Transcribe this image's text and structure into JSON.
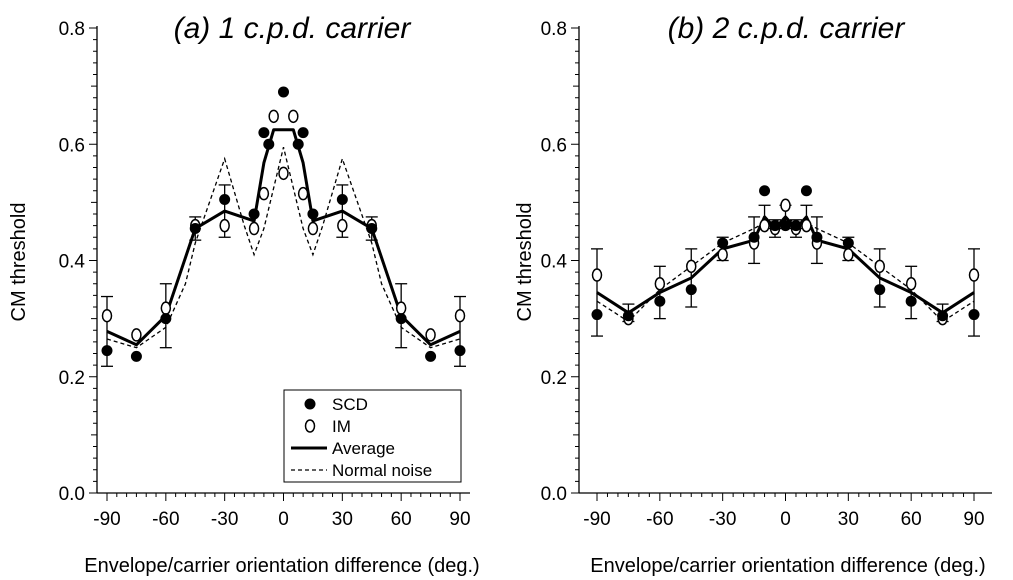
{
  "chart_data": [
    {
      "type": "line",
      "title": "(a) 1 c.p.d. carrier",
      "xlabel": "Envelope/carrier orientation difference (deg.)",
      "ylabel": "CM threshold",
      "xlim": [
        -95,
        95
      ],
      "ylim": [
        0,
        0.8
      ],
      "xticks": [
        -90,
        -60,
        -30,
        0,
        30,
        60,
        90
      ],
      "yticks": [
        0.0,
        0.2,
        0.4,
        0.6,
        0.8
      ],
      "xtick_labels": [
        "-90",
        "-60",
        "-30",
        "0",
        "30",
        "60",
        "90"
      ],
      "ytick_labels": [
        "0.0",
        "0.2",
        "0.4",
        "0.6",
        "0.8"
      ],
      "grid": false,
      "legend_position": "bottom-right",
      "legend": [
        "SCD",
        "IM",
        "Average",
        "Normal noise"
      ],
      "series": [
        {
          "name": "SCD",
          "style": "filled-circle",
          "x": [
            -90,
            -75,
            -60,
            -45,
            -30,
            -15,
            -10,
            -7.5,
            0,
            7.5,
            10,
            15,
            30,
            45,
            60,
            75,
            90
          ],
          "y": [
            0.245,
            0.235,
            0.3,
            0.455,
            0.505,
            0.48,
            0.62,
            0.6,
            0.69,
            0.6,
            0.62,
            0.48,
            0.505,
            0.455,
            0.3,
            0.235,
            0.245
          ]
        },
        {
          "name": "IM",
          "style": "open-circle",
          "x": [
            -90,
            -75,
            -60,
            -45,
            -30,
            -15,
            -10,
            -5,
            0,
            5,
            10,
            15,
            30,
            45,
            60,
            75,
            90
          ],
          "y": [
            0.305,
            0.272,
            0.318,
            0.46,
            0.46,
            0.455,
            0.515,
            0.648,
            0.55,
            0.648,
            0.515,
            0.455,
            0.46,
            0.46,
            0.318,
            0.272,
            0.305
          ]
        },
        {
          "name": "Average",
          "style": "thick-solid",
          "x": [
            -90,
            -75,
            -60,
            -45,
            -30,
            -15,
            -10,
            -5,
            0,
            5,
            10,
            15,
            30,
            45,
            60,
            75,
            90
          ],
          "y": [
            0.278,
            0.255,
            0.305,
            0.455,
            0.485,
            0.468,
            0.568,
            0.625,
            0.625,
            0.625,
            0.568,
            0.468,
            0.485,
            0.455,
            0.305,
            0.255,
            0.278
          ],
          "error": [
            0.06,
            0.0,
            0.055,
            0.02,
            0.045,
            0.0,
            0.0,
            0.0,
            0.0,
            0.0,
            0.0,
            0.0,
            0.045,
            0.02,
            0.055,
            0.0,
            0.06
          ]
        },
        {
          "name": "Normal noise",
          "style": "dashed",
          "x": [
            -90,
            -75,
            -60,
            -50,
            -45,
            -30,
            -20,
            -15,
            -10,
            0,
            10,
            15,
            20,
            30,
            45,
            50,
            60,
            75,
            90
          ],
          "y": [
            0.265,
            0.25,
            0.285,
            0.36,
            0.43,
            0.575,
            0.46,
            0.41,
            0.455,
            0.595,
            0.455,
            0.41,
            0.46,
            0.575,
            0.43,
            0.36,
            0.285,
            0.25,
            0.265
          ]
        }
      ]
    },
    {
      "type": "line",
      "title": "(b) 2 c.p.d. carrier",
      "xlabel": "Envelope/carrier orientation difference (deg.)",
      "ylabel": "CM threshold",
      "xlim": [
        -95,
        95
      ],
      "ylim": [
        0,
        0.8
      ],
      "xticks": [
        -90,
        -60,
        -30,
        0,
        30,
        60,
        90
      ],
      "yticks": [
        0.0,
        0.2,
        0.4,
        0.6,
        0.8
      ],
      "xtick_labels": [
        "-90",
        "-60",
        "-30",
        "0",
        "30",
        "60",
        "90"
      ],
      "ytick_labels": [
        "0.0",
        "0.2",
        "0.4",
        "0.6",
        "0.8"
      ],
      "grid": false,
      "series": [
        {
          "name": "SCD",
          "style": "filled-circle",
          "x": [
            -90,
            -75,
            -60,
            -45,
            -30,
            -15,
            -10,
            -5,
            0,
            5,
            10,
            15,
            30,
            45,
            60,
            75,
            90
          ],
          "y": [
            0.307,
            0.305,
            0.33,
            0.35,
            0.43,
            0.44,
            0.52,
            0.46,
            0.46,
            0.46,
            0.52,
            0.44,
            0.43,
            0.35,
            0.33,
            0.305,
            0.307
          ]
        },
        {
          "name": "IM",
          "style": "open-circle",
          "x": [
            -90,
            -75,
            -60,
            -45,
            -30,
            -15,
            -10,
            -5,
            0,
            5,
            10,
            15,
            30,
            45,
            60,
            75,
            90
          ],
          "y": [
            0.375,
            0.3,
            0.36,
            0.39,
            0.41,
            0.43,
            0.46,
            0.455,
            0.495,
            0.455,
            0.46,
            0.43,
            0.41,
            0.39,
            0.36,
            0.3,
            0.375
          ]
        },
        {
          "name": "Average",
          "style": "thick-solid",
          "x": [
            -90,
            -75,
            -60,
            -45,
            -30,
            -15,
            -10,
            -5,
            0,
            5,
            10,
            15,
            30,
            45,
            60,
            75,
            90
          ],
          "y": [
            0.345,
            0.31,
            0.345,
            0.37,
            0.42,
            0.435,
            0.475,
            0.455,
            0.475,
            0.455,
            0.475,
            0.435,
            0.42,
            0.37,
            0.345,
            0.31,
            0.345
          ],
          "error": [
            0.075,
            0.015,
            0.045,
            0.05,
            0.02,
            0.04,
            0.02,
            0.015,
            0.02,
            0.015,
            0.02,
            0.04,
            0.02,
            0.05,
            0.045,
            0.015,
            0.075
          ]
        },
        {
          "name": "Normal noise",
          "style": "dashed",
          "x": [
            -90,
            -75,
            -60,
            -45,
            -30,
            -15,
            -10,
            0,
            10,
            15,
            30,
            45,
            60,
            75,
            90
          ],
          "y": [
            0.33,
            0.295,
            0.35,
            0.39,
            0.43,
            0.455,
            0.465,
            0.47,
            0.465,
            0.455,
            0.43,
            0.39,
            0.35,
            0.295,
            0.33
          ]
        }
      ]
    }
  ]
}
